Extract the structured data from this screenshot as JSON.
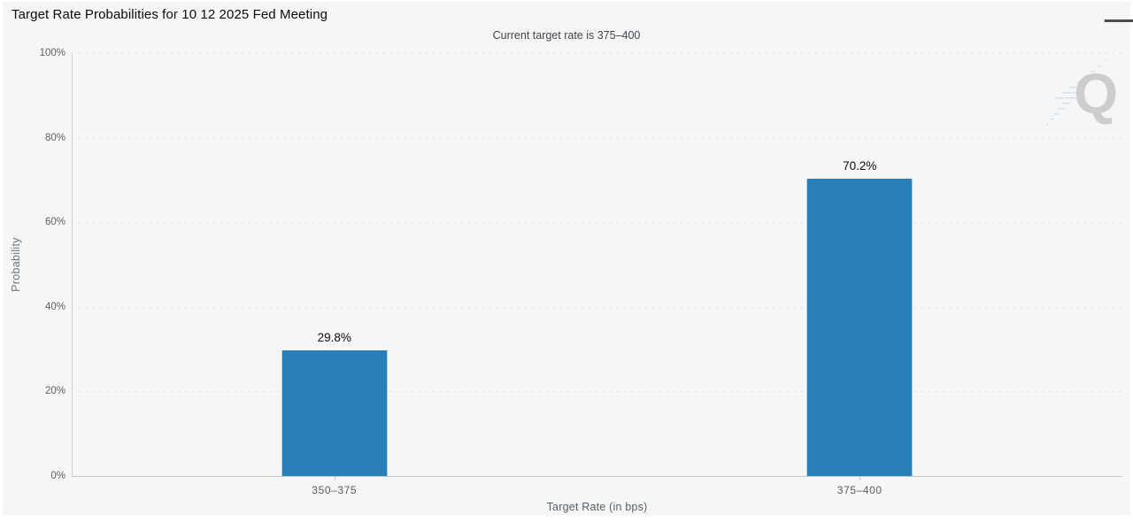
{
  "header": {
    "menu_icon": "hamburger-icon"
  },
  "watermark": {
    "letter": "Q",
    "accent_color": "#9cc3e0",
    "letter_color": "#c7c7c7"
  },
  "chart_data": {
    "type": "bar",
    "title": "Target Rate Probabilities for 10 12 2025 Fed Meeting",
    "subtitle": "Current target rate is 375–400",
    "categories": [
      "350–375",
      "375–400"
    ],
    "values": [
      29.8,
      70.2
    ],
    "value_labels": [
      "29.8%",
      "70.2%"
    ],
    "xlabel": "Target Rate (in bps)",
    "ylabel": "Probability",
    "ylim": [
      0,
      100
    ],
    "yticks": [
      0,
      20,
      40,
      60,
      80,
      100
    ],
    "ytick_labels": [
      "0%",
      "20%",
      "40%",
      "60%",
      "80%",
      "100%"
    ],
    "grid": true,
    "gridline_style": "dotted",
    "legend": "none",
    "bar_color": "#2b7fb8",
    "background_color": "#f6f6f6"
  }
}
